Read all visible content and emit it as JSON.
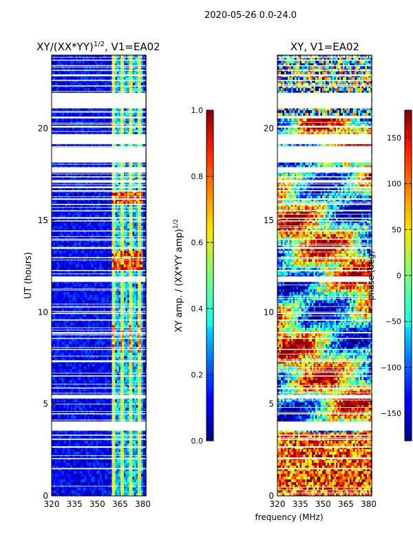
{
  "suptitle": "2020-05-26 0.0-24.0",
  "chart_data": [
    {
      "type": "heatmap",
      "title_prefix": "XY/(XX*YY)",
      "title_exp": "1/2",
      "title_suffix": ", V1=EA02",
      "xlabel": "",
      "ylabel": "UT (hours)",
      "xlim": [
        320,
        382
      ],
      "ylim": [
        0,
        24
      ],
      "xticks": [
        320,
        335,
        350,
        365,
        380
      ],
      "yticks": [
        0,
        5,
        10,
        15,
        20
      ],
      "colorbar": {
        "label_prefix": "XY amp. / (XX*YY amp)",
        "label_exp": "1/2",
        "range": [
          0.0,
          1.0
        ],
        "ticks": [
          0.0,
          0.2,
          0.4,
          0.6,
          0.8,
          1.0
        ],
        "colormap": "jet"
      }
    },
    {
      "type": "heatmap",
      "title": "XY, V1=EA02",
      "xlabel": "frequency (MHz)",
      "ylabel": "",
      "xlim": [
        320,
        382
      ],
      "ylim": [
        0,
        24
      ],
      "xticks": [
        320,
        335,
        350,
        365,
        380
      ],
      "yticks": [
        0,
        5,
        10,
        15,
        20
      ],
      "colorbar": {
        "label": "phase (deg)",
        "range": [
          -180,
          180
        ],
        "ticks": [
          -150,
          -100,
          -50,
          0,
          50,
          100,
          150
        ],
        "colormap": "jet"
      }
    }
  ],
  "flagged_hour_bands": [
    [
      1.45,
      1.52
    ],
    [
      2.0,
      2.06
    ],
    [
      2.62,
      2.7
    ],
    [
      3.05,
      3.12
    ],
    [
      3.28,
      3.34
    ],
    [
      3.55,
      4.05
    ],
    [
      4.45,
      4.5
    ],
    [
      5.3,
      5.5
    ],
    [
      5.85,
      5.9
    ],
    [
      6.5,
      6.56
    ],
    [
      7.3,
      7.36
    ],
    [
      7.95,
      8.0
    ],
    [
      8.55,
      8.6
    ],
    [
      8.85,
      8.92
    ],
    [
      9.55,
      9.6
    ],
    [
      9.9,
      9.96
    ],
    [
      11.65,
      11.95
    ],
    [
      12.25,
      12.3
    ],
    [
      12.95,
      13.0
    ],
    [
      13.45,
      13.55
    ],
    [
      13.95,
      14.0
    ],
    [
      14.4,
      14.45
    ],
    [
      14.95,
      15.0
    ],
    [
      15.1,
      15.15
    ],
    [
      15.5,
      15.55
    ],
    [
      15.85,
      15.9
    ],
    [
      16.15,
      16.2
    ],
    [
      16.6,
      16.65
    ],
    [
      16.8,
      16.85
    ],
    [
      17.05,
      17.2
    ],
    [
      17.35,
      17.4
    ],
    [
      17.6,
      17.9
    ],
    [
      18.15,
      19.0
    ],
    [
      19.15,
      19.7
    ],
    [
      20.05,
      20.15
    ],
    [
      20.55,
      20.65
    ],
    [
      21.1,
      21.95
    ],
    [
      22.3,
      22.35
    ],
    [
      22.6,
      22.65
    ],
    [
      22.85,
      22.95
    ],
    [
      23.15,
      23.2
    ],
    [
      23.4,
      23.45
    ],
    [
      23.7,
      23.75
    ]
  ]
}
